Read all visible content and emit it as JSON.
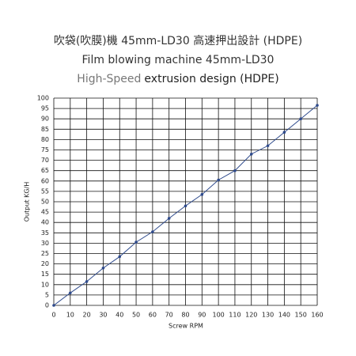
{
  "chart_data": {
    "type": "line",
    "title": "吹袋(吹膜)機 45mm-LD30 高速押出設計 (HDPE)",
    "subtitle": "Film blowing machine 45mm-LD30",
    "subtitle2": [
      "High-Speed",
      "extrusion design (HDPE)"
    ],
    "x_label": "Screw RPM",
    "y_label": "Output KG/H",
    "x": [
      0,
      10,
      20,
      30,
      40,
      50,
      60,
      70,
      80,
      90,
      100,
      110,
      120,
      130,
      140,
      150,
      160
    ],
    "series": [
      {
        "color": "#2e4a8c",
        "values": [
          0,
          6,
          11.5,
          18,
          23.5,
          30.5,
          35.5,
          42,
          48,
          53.5,
          60.5,
          65,
          73,
          77,
          83.5,
          90,
          96.5
        ]
      }
    ],
    "xlim": [
      0,
      160
    ],
    "xticks": [
      0,
      10,
      20,
      30,
      40,
      50,
      60,
      70,
      80,
      90,
      100,
      110,
      120,
      130,
      140,
      150,
      160
    ],
    "ylim": [
      0,
      100
    ],
    "yticks": [
      0,
      5,
      10,
      15,
      20,
      25,
      30,
      35,
      40,
      45,
      50,
      55,
      60,
      65,
      70,
      75,
      80,
      85,
      90,
      95,
      100
    ],
    "grid": true
  }
}
